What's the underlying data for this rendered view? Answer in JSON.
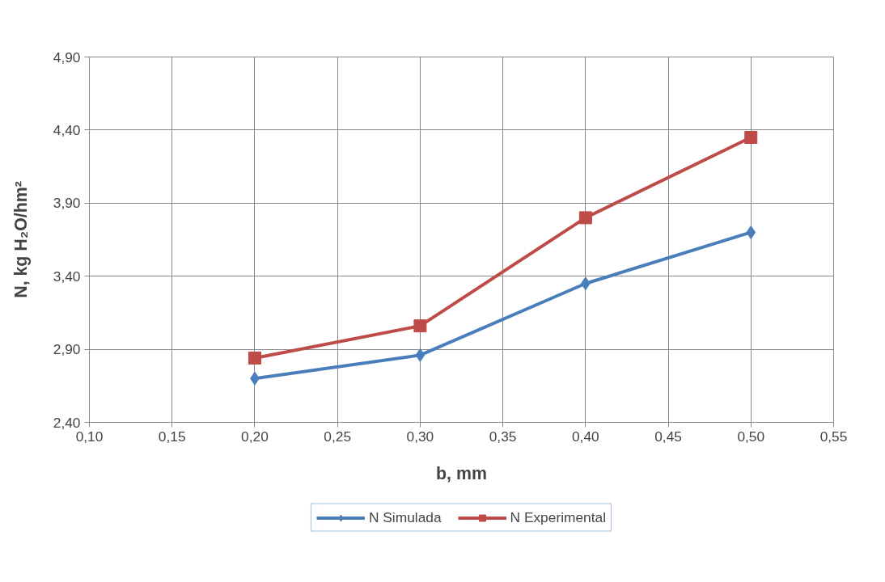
{
  "chart_data": {
    "type": "line",
    "xlabel": "b, mm",
    "ylabel": "N, kg H₂O/hm²",
    "x": [
      0.2,
      0.3,
      0.4,
      0.5
    ],
    "series": [
      {
        "name": "N Simulada",
        "color": "#4a7ebb",
        "marker": "diamond",
        "values": [
          2.7,
          2.86,
          3.35,
          3.7
        ]
      },
      {
        "name": "N Experimental",
        "color": "#be4b48",
        "marker": "square",
        "values": [
          2.84,
          3.06,
          3.8,
          4.35
        ]
      }
    ],
    "xlim": [
      0.1,
      0.55
    ],
    "xticks": [
      {
        "value": 0.1,
        "label": "0,10"
      },
      {
        "value": 0.15,
        "label": "0,15"
      },
      {
        "value": 0.2,
        "label": "0,20"
      },
      {
        "value": 0.25,
        "label": "0,25"
      },
      {
        "value": 0.3,
        "label": "0,30"
      },
      {
        "value": 0.35,
        "label": "0,35"
      },
      {
        "value": 0.4,
        "label": "0,40"
      },
      {
        "value": 0.45,
        "label": "0,45"
      },
      {
        "value": 0.5,
        "label": "0,50"
      },
      {
        "value": 0.55,
        "label": "0,55"
      }
    ],
    "ylim": [
      2.4,
      4.9
    ],
    "yticks": [
      {
        "value": 2.4,
        "label": "2,40"
      },
      {
        "value": 2.9,
        "label": "2,90"
      },
      {
        "value": 3.4,
        "label": "3,40"
      },
      {
        "value": 3.9,
        "label": "3,90"
      },
      {
        "value": 4.4,
        "label": "4,40"
      },
      {
        "value": 4.9,
        "label": "4,90"
      }
    ],
    "grid": true,
    "legend": "bottom",
    "line_style": "solid"
  }
}
